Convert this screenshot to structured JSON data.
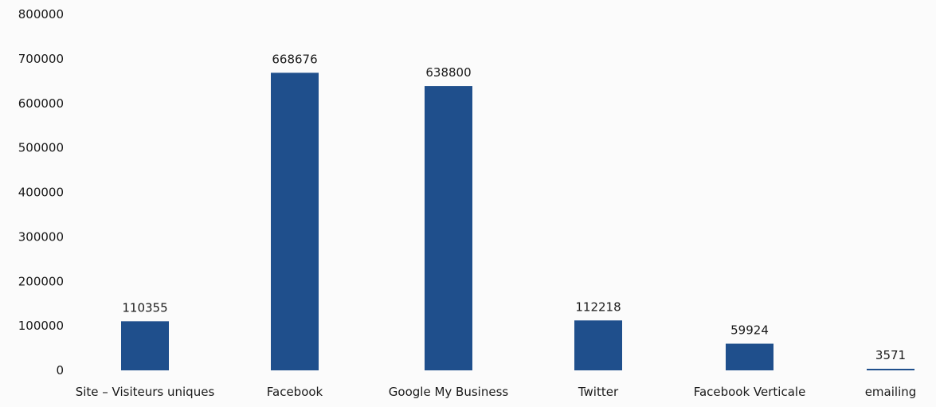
{
  "chart_data": {
    "type": "bar",
    "title": "",
    "xlabel": "",
    "ylabel": "",
    "categories": [
      "Site – Visiteurs uniques",
      "Facebook",
      "Google My Business",
      "Twitter",
      "Facebook Verticale",
      "emailing"
    ],
    "values": [
      110355,
      668676,
      638800,
      112218,
      59924,
      3571
    ],
    "data_labels": [
      "110355",
      "668676",
      "638800",
      "112218",
      "59924",
      "3571"
    ],
    "y_ticks": [
      "0",
      "100000",
      "200000",
      "300000",
      "400000",
      "500000",
      "600000",
      "700000",
      "800000"
    ],
    "ylim": [
      0,
      800000
    ],
    "grid": false,
    "legend": "none",
    "colors": {
      "bar": "#1f4f8c",
      "text": "#1a1a1a",
      "background": "#fbfbfb"
    }
  }
}
